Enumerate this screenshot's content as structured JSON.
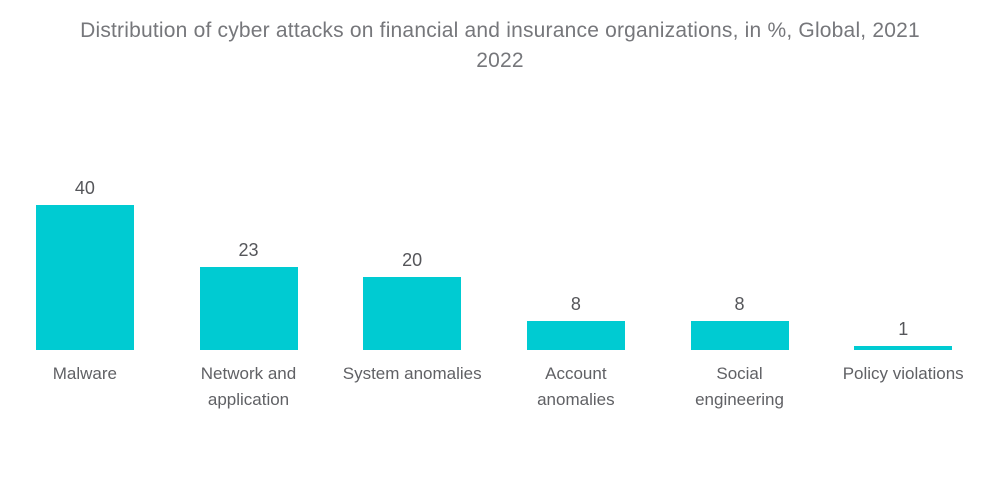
{
  "title": {
    "line1": "Distribution of cyber attacks on financial and insurance organizations, in %, Global, 2021",
    "line2": "2022"
  },
  "chart_data": {
    "type": "bar",
    "title": "Distribution of cyber attacks on financial and insurance organizations, in %, Global, 2021 2022",
    "categories": [
      "Malware",
      "Network and application",
      "System anomalies",
      "Account anomalies",
      "Social engineering",
      "Policy violations"
    ],
    "values": [
      40,
      23,
      20,
      8,
      8,
      1
    ],
    "unit": "%",
    "value_labels": [
      "40",
      "23",
      "20",
      "8",
      "8",
      "1"
    ],
    "value_labels_position": "above-bars",
    "orientation": "vertical",
    "grid": false,
    "axes_visible": false,
    "legend": "none",
    "ylim": [
      0,
      40
    ],
    "colors": {
      "bar_fill": "#00CBD2",
      "title_text": "#76777B",
      "value_label_text": "#55565A",
      "category_label_text": "#606165",
      "background": "#FFFFFF"
    }
  }
}
